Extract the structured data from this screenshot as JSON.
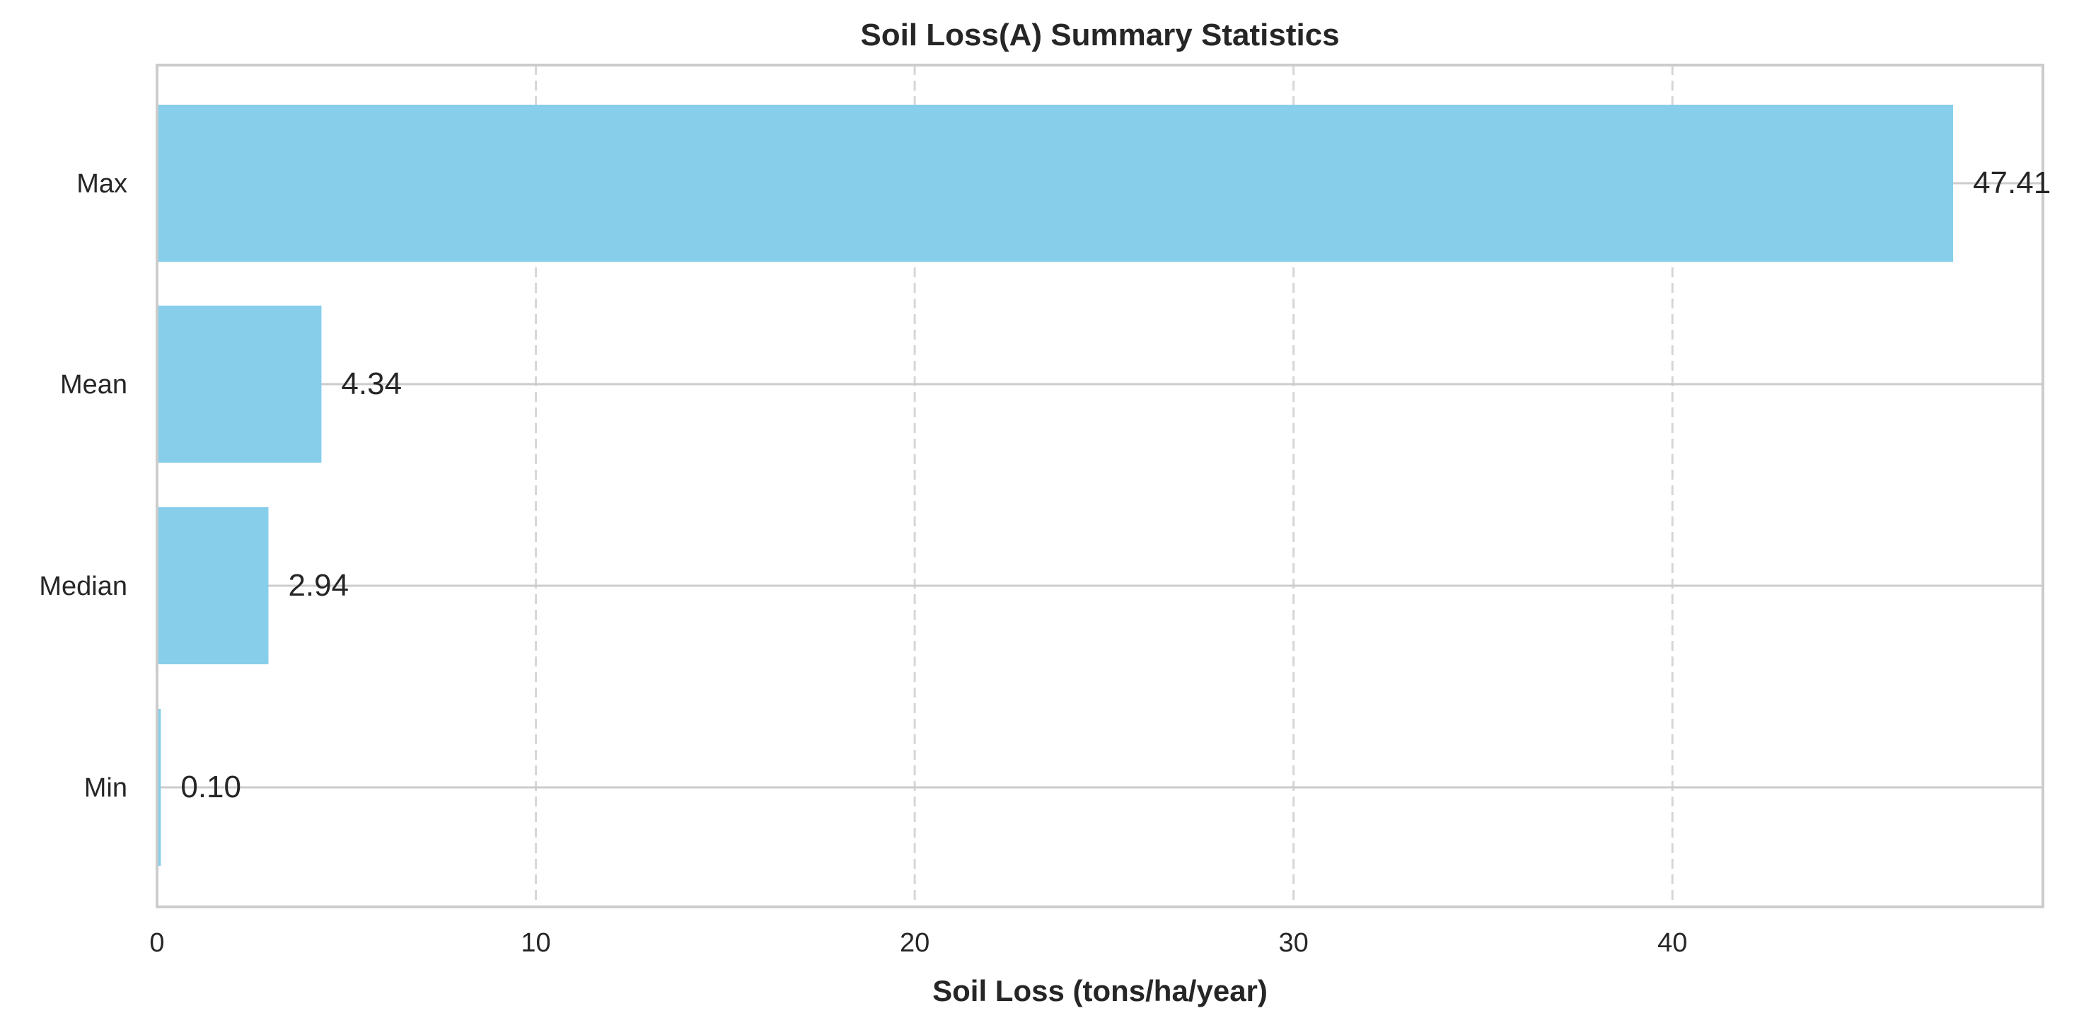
{
  "chart_data": {
    "type": "bar",
    "orientation": "horizontal",
    "title": "Soil Loss(A) Summary Statistics",
    "xlabel": "Soil Loss (tons/ha/year)",
    "ylabel": "",
    "categories": [
      "Max",
      "Mean",
      "Median",
      "Min"
    ],
    "values": [
      47.41,
      4.34,
      2.94,
      0.1
    ],
    "data_labels": [
      "47.41",
      "4.34",
      "2.94",
      "0.10"
    ],
    "xlim": [
      0,
      49.78
    ],
    "xticks": [
      0,
      10,
      20,
      30,
      40
    ],
    "xtick_labels": [
      "0",
      "10",
      "20",
      "30",
      "40"
    ],
    "grid": true,
    "bar_color": "#87CEEB"
  }
}
